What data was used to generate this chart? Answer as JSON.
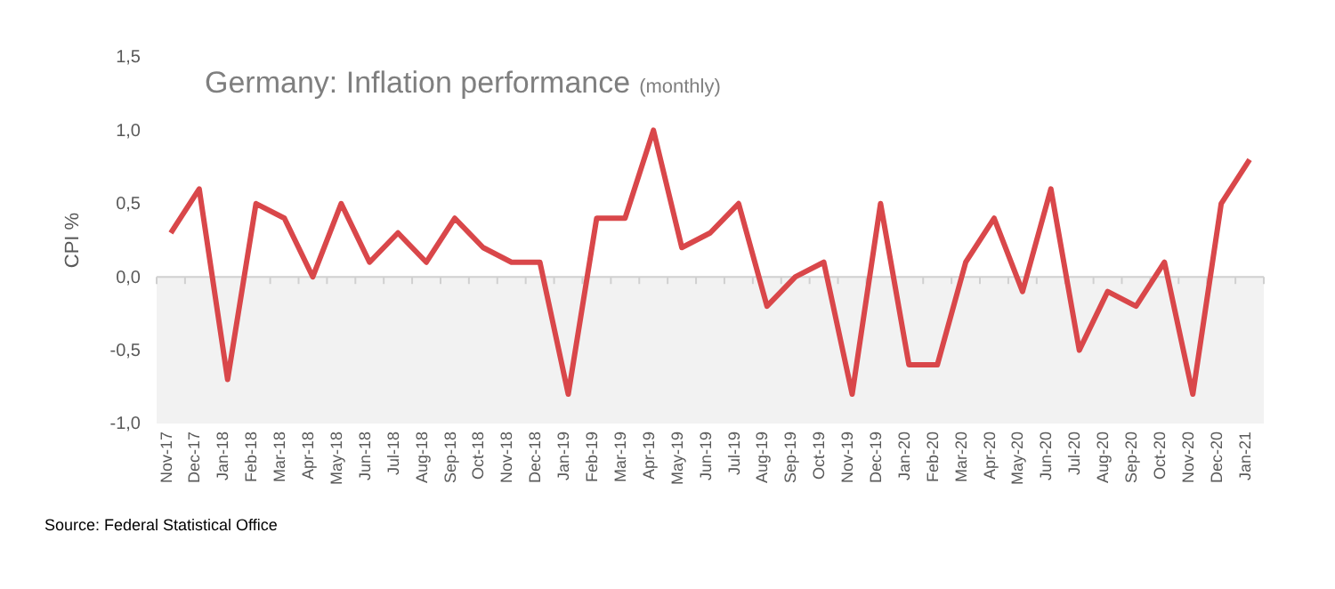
{
  "chart_data": {
    "type": "line",
    "title": "Germany: Inflation performance",
    "subtitle": "(monthly)",
    "ylabel": "CPI %",
    "categories": [
      "Nov-17",
      "Dec-17",
      "Jan-18",
      "Feb-18",
      "Mar-18",
      "Apr-18",
      "May-18",
      "Jun-18",
      "Jul-18",
      "Aug-18",
      "Sep-18",
      "Oct-18",
      "Nov-18",
      "Dec-18",
      "Jan-19",
      "Feb-19",
      "Mar-19",
      "Apr-19",
      "May-19",
      "Jun-19",
      "Jul-19",
      "Aug-19",
      "Sep-19",
      "Oct-19",
      "Nov-19",
      "Dec-19",
      "Jan-20",
      "Feb-20",
      "Mar-20",
      "Apr-20",
      "May-20",
      "Jun-20",
      "Jul-20",
      "Aug-20",
      "Sep-20",
      "Oct-20",
      "Nov-20",
      "Dec-20",
      "Jan-21"
    ],
    "series": [
      {
        "color": "#d9474a",
        "values": [
          0.3,
          0.6,
          -0.7,
          0.5,
          0.4,
          0.0,
          0.5,
          0.1,
          0.3,
          0.1,
          0.4,
          0.2,
          0.1,
          0.1,
          -0.8,
          0.4,
          0.4,
          1.0,
          0.2,
          0.3,
          0.5,
          -0.2,
          0.0,
          0.1,
          -0.8,
          0.5,
          -0.6,
          -0.6,
          0.1,
          0.4,
          -0.1,
          0.6,
          -0.5,
          -0.1,
          -0.2,
          0.1,
          -0.8,
          0.5,
          0.8
        ]
      }
    ],
    "ylim": [
      -1,
      1.5
    ],
    "yticks": [
      {
        "value": -1,
        "label": "-1,0"
      },
      {
        "value": -0.5,
        "label": "-0,5"
      },
      {
        "value": 0,
        "label": "0,0"
      },
      {
        "value": 0.5,
        "label": "0,5"
      },
      {
        "value": 1,
        "label": "1,0"
      },
      {
        "value": 1.5,
        "label": "1,5"
      }
    ],
    "bands": [
      {
        "axis": "y",
        "from": -1,
        "to": 0,
        "color": "#f2f2f2"
      }
    ],
    "marker": "none",
    "line_style": "solid",
    "annotations": [
      "Source: Federal Statistical Office"
    ]
  }
}
